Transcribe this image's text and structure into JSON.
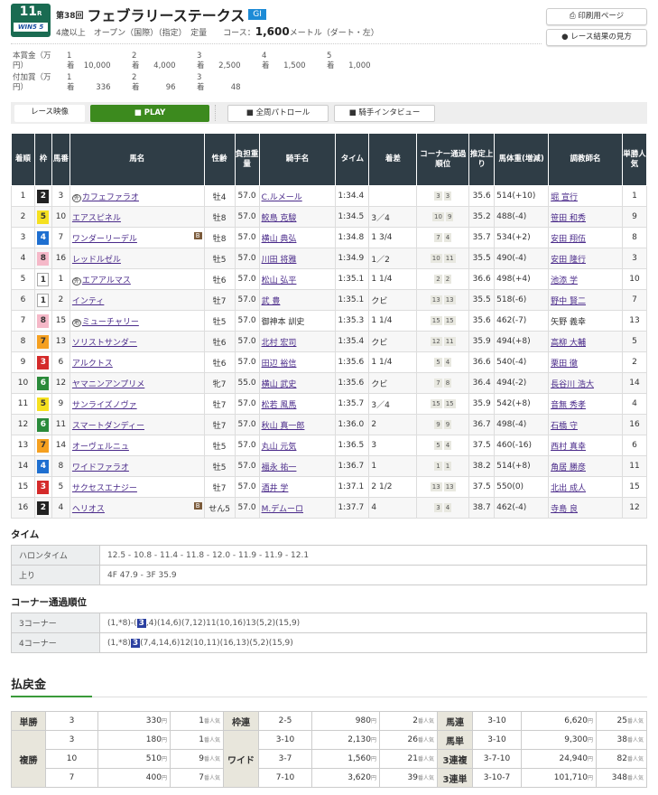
{
  "race": {
    "num": "11",
    "r": "R",
    "win5": "WIN5",
    "win5_n": "5",
    "kai": "第38回",
    "name": "フェブラリーステークス",
    "grade": "GI",
    "cond": "4歳以上　オープン（国際）（指定）　定量　　コース：",
    "dist": "1,600",
    "dist_unit": "メートル",
    "surface": "（ダート・左）"
  },
  "buttons": {
    "print": "⎙ 印刷用ページ",
    "howto": "● レース結果の見方"
  },
  "prize": {
    "main_label": "本賞金（万円）",
    "add_label": "付加賞（万円）",
    "unit": "着",
    "main": [
      {
        "p": "1",
        "v": "10,000"
      },
      {
        "p": "2",
        "v": "4,000"
      },
      {
        "p": "3",
        "v": "2,500"
      },
      {
        "p": "4",
        "v": "1,500"
      },
      {
        "p": "5",
        "v": "1,000"
      }
    ],
    "add": [
      {
        "p": "1",
        "v": "336"
      },
      {
        "p": "2",
        "v": "96"
      },
      {
        "p": "3",
        "v": "48"
      }
    ]
  },
  "video": {
    "label": "レース映像",
    "play": "■ PLAY",
    "patrol": "■ 全周パトロール",
    "interview": "■ 騎手インタビュー"
  },
  "headers": [
    "着順",
    "枠",
    "馬番",
    "馬名",
    "性齢",
    "負担重量",
    "騎手名",
    "タイム",
    "着差",
    "コーナー通過順位",
    "推定上り",
    "馬体重(増減)",
    "調教師名",
    "単勝人気"
  ],
  "frame_colors": {
    "1": [
      "#ffffff",
      "#333"
    ],
    "2": [
      "#222222",
      "#fff"
    ],
    "3": [
      "#d42a2a",
      "#fff"
    ],
    "4": [
      "#1e6fd0",
      "#fff"
    ],
    "5": [
      "#f5e020",
      "#333"
    ],
    "6": [
      "#2a8a3a",
      "#fff"
    ],
    "7": [
      "#f5a020",
      "#333"
    ],
    "8": [
      "#f5b8c8",
      "#333"
    ]
  },
  "rows": [
    [
      "1",
      "2",
      "3",
      "カフェファラオ",
      "牡4",
      "57.0",
      "C.ルメール",
      "1:34.4",
      "",
      "3",
      "3",
      "35.6",
      "514(+10)",
      "堀 宣行",
      "1",
      "外",
      ""
    ],
    [
      "2",
      "5",
      "10",
      "エアスピネル",
      "牡8",
      "57.0",
      "鮫島 克駿",
      "1:34.5",
      "3／4",
      "10",
      "9",
      "35.2",
      "488(-4)",
      "笹田 和秀",
      "9",
      "",
      ""
    ],
    [
      "3",
      "4",
      "7",
      "ワンダーリーデル",
      "牡8",
      "57.0",
      "横山 典弘",
      "1:34.8",
      "1 3/4",
      "7",
      "4",
      "35.7",
      "534(+2)",
      "安田 翔伍",
      "8",
      "",
      "B"
    ],
    [
      "4",
      "8",
      "16",
      "レッドルゼル",
      "牡5",
      "57.0",
      "川田 将雅",
      "1:34.9",
      "1／2",
      "10",
      "11",
      "35.5",
      "490(-4)",
      "安田 隆行",
      "3",
      "",
      ""
    ],
    [
      "5",
      "1",
      "1",
      "エアアルマス",
      "牡6",
      "57.0",
      "松山 弘平",
      "1:35.1",
      "1 1/4",
      "2",
      "2",
      "36.6",
      "498(+4)",
      "池添 学",
      "10",
      "外",
      ""
    ],
    [
      "6",
      "1",
      "2",
      "インティ",
      "牡7",
      "57.0",
      "武 豊",
      "1:35.1",
      "クビ",
      "13",
      "13",
      "35.5",
      "518(-6)",
      "野中 賢二",
      "7",
      "",
      ""
    ],
    [
      "7",
      "8",
      "15",
      "ミューチャリー",
      "牡5",
      "57.0",
      "御神本 訓史",
      "1:35.3",
      "1 1/4",
      "15",
      "15",
      "35.6",
      "462(-7)",
      "矢野 義幸",
      "13",
      "地",
      ""
    ],
    [
      "8",
      "7",
      "13",
      "ソリストサンダー",
      "牡6",
      "57.0",
      "北村 宏司",
      "1:35.4",
      "クビ",
      "12",
      "11",
      "35.9",
      "494(+8)",
      "高柳 大輔",
      "5",
      "",
      ""
    ],
    [
      "9",
      "3",
      "6",
      "アルクトス",
      "牡6",
      "57.0",
      "田辺 裕信",
      "1:35.6",
      "1 1/4",
      "5",
      "4",
      "36.6",
      "540(-4)",
      "栗田 徹",
      "2",
      "",
      ""
    ],
    [
      "10",
      "6",
      "12",
      "ヤマニンアンプリメ",
      "牝7",
      "55.0",
      "横山 武史",
      "1:35.6",
      "クビ",
      "7",
      "8",
      "36.4",
      "494(-2)",
      "長谷川 浩大",
      "14",
      "",
      ""
    ],
    [
      "11",
      "5",
      "9",
      "サンライズノヴァ",
      "牡7",
      "57.0",
      "松若 風馬",
      "1:35.7",
      "3／4",
      "15",
      "15",
      "35.9",
      "542(+8)",
      "音無 秀孝",
      "4",
      "",
      ""
    ],
    [
      "12",
      "6",
      "11",
      "スマートダンディー",
      "牡7",
      "57.0",
      "秋山 真一郎",
      "1:36.0",
      "2",
      "9",
      "9",
      "36.7",
      "498(-4)",
      "石橋 守",
      "16",
      "",
      ""
    ],
    [
      "13",
      "7",
      "14",
      "オーヴェルニュ",
      "牡5",
      "57.0",
      "丸山 元気",
      "1:36.5",
      "3",
      "5",
      "4",
      "37.5",
      "460(-16)",
      "西村 真幸",
      "6",
      "",
      ""
    ],
    [
      "14",
      "4",
      "8",
      "ワイドファラオ",
      "牡5",
      "57.0",
      "福永 祐一",
      "1:36.7",
      "1",
      "1",
      "1",
      "38.2",
      "514(+8)",
      "角居 勝彦",
      "11",
      "",
      ""
    ],
    [
      "15",
      "3",
      "5",
      "サクセスエナジー",
      "牡7",
      "57.0",
      "酒井 学",
      "1:37.1",
      "2 1/2",
      "13",
      "13",
      "37.5",
      "550(0)",
      "北出 成人",
      "15",
      "",
      ""
    ],
    [
      "16",
      "2",
      "4",
      "ヘリオス",
      "せん5",
      "57.0",
      "M.デムーロ",
      "1:37.7",
      "4",
      "3",
      "4",
      "38.7",
      "462(-4)",
      "寺島 良",
      "12",
      "",
      "B"
    ]
  ],
  "time": {
    "title": "タイム",
    "furlong_label": "ハロンタイム",
    "furlong": "12.5 - 10.8 - 11.4 - 11.8 - 12.0 - 11.9 - 11.9 - 12.1",
    "agari_label": "上り",
    "agari": "4F 47.9 - 3F 35.9"
  },
  "corner": {
    "title": "コーナー通過順位",
    "c3_label": "3コーナー",
    "c3_pre": "(1,*8)-(",
    "c3_hl": "3",
    "c3_post": ",4)(14,6)(7,12)11(10,16)13(5,2)(15,9)",
    "c4_label": "4コーナー",
    "c4_pre": "(1,*8)",
    "c4_hl": "3",
    "c4_post": "(7,4,14,6)12(10,11)(16,13)(5,2)(15,9)"
  },
  "payout": {
    "title": "払戻金",
    "yen": "円",
    "pop": "番人気",
    "tansho": {
      "label": "単勝",
      "rows": [
        [
          "3",
          "330",
          "1"
        ]
      ]
    },
    "fukusho": {
      "label": "複勝",
      "rows": [
        [
          "3",
          "180",
          "1"
        ],
        [
          "10",
          "510",
          "9"
        ],
        [
          "7",
          "400",
          "7"
        ]
      ]
    },
    "wakuren": {
      "label": "枠連",
      "rows": [
        [
          "2-5",
          "980",
          "2"
        ]
      ]
    },
    "wide": {
      "label": "ワイド",
      "rows": [
        [
          "3-10",
          "2,130",
          "26"
        ],
        [
          "3-7",
          "1,560",
          "21"
        ],
        [
          "7-10",
          "3,620",
          "39"
        ]
      ]
    },
    "umaren": {
      "label": "馬連",
      "rows": [
        [
          "3-10",
          "6,620",
          "25"
        ]
      ]
    },
    "umatan": {
      "label": "馬単",
      "rows": [
        [
          "3-10",
          "9,300",
          "38"
        ]
      ]
    },
    "sanrenpuku": {
      "label": "3連複",
      "rows": [
        [
          "3-7-10",
          "24,940",
          "82"
        ]
      ]
    },
    "sanrentan": {
      "label": "3連単",
      "rows": [
        [
          "3-10-7",
          "101,710",
          "348"
        ]
      ]
    }
  }
}
